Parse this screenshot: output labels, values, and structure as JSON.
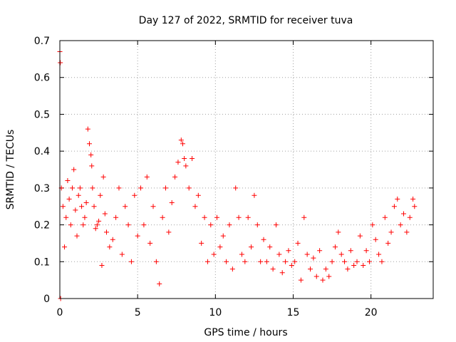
{
  "chart_data": {
    "type": "scatter",
    "title": "Day 127 of 2022, SRMTID for receiver tuva",
    "xlabel": "GPS time / hours",
    "ylabel": "SRMTID / TECUs",
    "xlim": [
      0,
      24
    ],
    "ylim": [
      0,
      0.7
    ],
    "xticks": [
      0,
      5,
      10,
      15,
      20
    ],
    "xtick_labels": [
      "0",
      "5",
      "10",
      "15",
      "20"
    ],
    "yticks": [
      0,
      0.1,
      0.2,
      0.3,
      0.4,
      0.5,
      0.6,
      0.7
    ],
    "ytick_labels": [
      "0",
      "0.1",
      "0.2",
      "0.3",
      "0.4",
      "0.5",
      "0.6",
      "0.7"
    ],
    "grid": true,
    "marker": "plus",
    "color": "#ff0000",
    "series": [
      {
        "name": "SRMTID",
        "x": [
          0.0,
          0.03,
          0.05,
          0.1,
          0.2,
          0.3,
          0.4,
          0.5,
          0.6,
          0.7,
          0.8,
          0.9,
          1.0,
          1.1,
          1.2,
          1.3,
          1.4,
          1.5,
          1.6,
          1.7,
          1.8,
          1.9,
          2.0,
          2.05,
          2.1,
          2.2,
          2.3,
          2.4,
          2.5,
          2.6,
          2.7,
          2.8,
          2.9,
          3.0,
          3.2,
          3.4,
          3.6,
          3.8,
          4.0,
          4.2,
          4.4,
          4.6,
          4.8,
          5.0,
          5.2,
          5.4,
          5.6,
          5.8,
          6.0,
          6.2,
          6.4,
          6.6,
          6.8,
          7.0,
          7.2,
          7.4,
          7.6,
          7.8,
          7.9,
          8.0,
          8.1,
          8.3,
          8.5,
          8.7,
          8.9,
          9.1,
          9.3,
          9.5,
          9.7,
          9.9,
          10.1,
          10.3,
          10.5,
          10.7,
          10.9,
          11.1,
          11.3,
          11.5,
          11.7,
          11.9,
          12.1,
          12.3,
          12.5,
          12.7,
          12.9,
          13.1,
          13.3,
          13.5,
          13.7,
          13.9,
          14.1,
          14.3,
          14.5,
          14.7,
          14.9,
          15.1,
          15.3,
          15.5,
          15.7,
          15.9,
          16.1,
          16.3,
          16.5,
          16.7,
          16.9,
          17.1,
          17.3,
          17.5,
          17.7,
          17.9,
          18.1,
          18.3,
          18.5,
          18.7,
          18.9,
          19.1,
          19.3,
          19.5,
          19.7,
          19.9,
          20.1,
          20.3,
          20.5,
          20.7,
          20.9,
          21.1,
          21.3,
          21.5,
          21.7,
          21.9,
          22.1,
          22.3,
          22.5,
          22.7,
          22.8
        ],
        "y": [
          0.67,
          0.64,
          0.0,
          0.3,
          0.25,
          0.14,
          0.22,
          0.32,
          0.27,
          0.2,
          0.3,
          0.35,
          0.24,
          0.17,
          0.28,
          0.3,
          0.25,
          0.2,
          0.22,
          0.26,
          0.46,
          0.42,
          0.39,
          0.36,
          0.3,
          0.25,
          0.19,
          0.2,
          0.21,
          0.28,
          0.09,
          0.33,
          0.23,
          0.18,
          0.14,
          0.16,
          0.22,
          0.3,
          0.12,
          0.25,
          0.2,
          0.1,
          0.28,
          0.17,
          0.3,
          0.2,
          0.33,
          0.15,
          0.25,
          0.1,
          0.04,
          0.22,
          0.3,
          0.18,
          0.26,
          0.33,
          0.37,
          0.43,
          0.42,
          0.38,
          0.36,
          0.3,
          0.38,
          0.25,
          0.28,
          0.15,
          0.22,
          0.1,
          0.2,
          0.12,
          0.22,
          0.14,
          0.17,
          0.1,
          0.2,
          0.08,
          0.3,
          0.22,
          0.12,
          0.1,
          0.22,
          0.14,
          0.28,
          0.2,
          0.1,
          0.16,
          0.1,
          0.14,
          0.08,
          0.2,
          0.12,
          0.07,
          0.1,
          0.13,
          0.09,
          0.1,
          0.15,
          0.05,
          0.22,
          0.12,
          0.08,
          0.11,
          0.06,
          0.13,
          0.05,
          0.08,
          0.06,
          0.1,
          0.14,
          0.18,
          0.12,
          0.1,
          0.08,
          0.13,
          0.09,
          0.1,
          0.17,
          0.09,
          0.13,
          0.1,
          0.2,
          0.16,
          0.12,
          0.1,
          0.22,
          0.15,
          0.18,
          0.25,
          0.27,
          0.2,
          0.23,
          0.18,
          0.22,
          0.27,
          0.25
        ]
      }
    ]
  }
}
